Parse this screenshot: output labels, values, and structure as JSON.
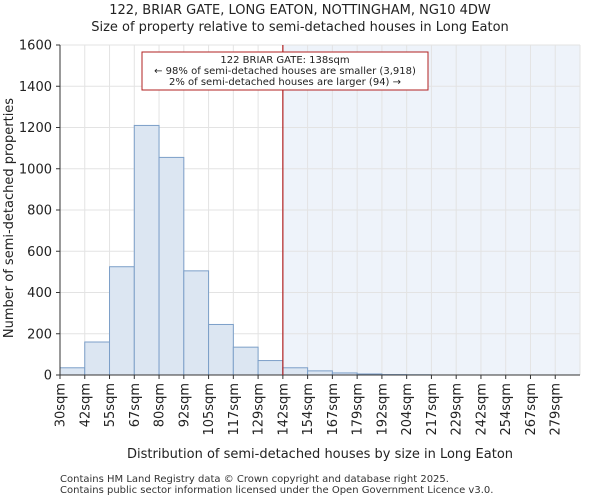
{
  "title_line1": "122, BRIAR GATE, LONG EATON, NOTTINGHAM, NG10 4DW",
  "title_line2": "Size of property relative to semi-detached houses in Long Eaton",
  "footer_line1": "Contains HM Land Registry data © Crown copyright and database right 2025.",
  "footer_line2": "Contains public sector information licensed under the Open Government Licence v3.0.",
  "colors": {
    "bar_fill": "#dce6f2",
    "bar_edge": "#7c9fc8",
    "marker": "#b22222",
    "shade": "#eef3fa"
  },
  "chart_data": {
    "type": "bar",
    "categories": [
      "30sqm",
      "42sqm",
      "55sqm",
      "67sqm",
      "80sqm",
      "92sqm",
      "105sqm",
      "117sqm",
      "129sqm",
      "142sqm",
      "154sqm",
      "167sqm",
      "179sqm",
      "192sqm",
      "204sqm",
      "217sqm",
      "229sqm",
      "242sqm",
      "254sqm",
      "267sqm",
      "279sqm"
    ],
    "values": [
      35,
      160,
      525,
      1210,
      1055,
      505,
      245,
      135,
      70,
      35,
      20,
      10,
      5,
      2,
      1,
      0,
      0,
      0,
      0,
      0,
      0
    ],
    "xlabel": "Distribution of semi-detached houses by size in Long Eaton",
    "ylabel": "Number of semi-detached properties",
    "ylim": [
      0,
      1600
    ],
    "yticks": [
      0,
      200,
      400,
      600,
      800,
      1000,
      1200,
      1400,
      1600
    ],
    "marker_value_sqm": 138,
    "annotation": {
      "line1": "122 BRIAR GATE: 138sqm",
      "line2": "← 98% of semi-detached houses are smaller (3,918)",
      "line3": "2% of semi-detached houses are larger (94) →"
    }
  }
}
